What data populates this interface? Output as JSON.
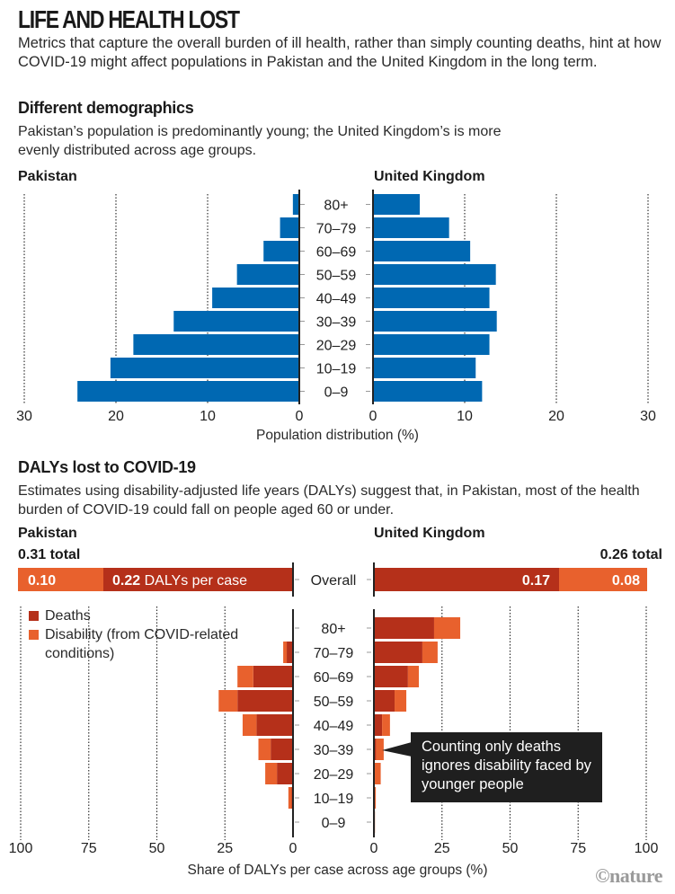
{
  "header": {
    "title": "LIFE AND HEALTH LOST",
    "intro": "Metrics that capture the overall burden of ill health, rather than simply counting deaths, hint at how COVID-19 might affect populations in Pakistan and the United Kingdom in the long term."
  },
  "section1": {
    "heading": "Different demographics",
    "description": "Pakistan’s population is predominantly young; the United Kingdom’s is more evenly distributed across age groups."
  },
  "section2": {
    "heading": "DALYs lost to COVID-19",
    "description": "Estimates using disability-adjusted life years (DALYs) suggest that, in Pakistan, most of the health burden of COVID-19 could fall on people aged 60 or under.",
    "pakistan_total": "0.31 total",
    "uk_total": "0.26 total",
    "overall_label": "Overall",
    "pakistan_overall_disability_label": "0.10",
    "pakistan_overall_deaths_label": "0.22",
    "pakistan_overall_deaths_suffix": " DALYs per case",
    "uk_overall_deaths_label": "0.17",
    "uk_overall_disability_label": "0.08",
    "legend": {
      "deaths": "Deaths",
      "disability": "Disability (from COVID-related conditions)"
    },
    "callout": "Counting only deaths ignores disability faced by younger people"
  },
  "countries": {
    "pakistan": "Pakistan",
    "uk": "United Kingdom"
  },
  "colors": {
    "blue": "#0068b2",
    "deaths": "#b5301a",
    "disability": "#e8612d",
    "grid": "#333333"
  },
  "credit": "©nature",
  "chart_data": [
    {
      "type": "bar",
      "title": "Different demographics",
      "orientation": "horizontal-population-pyramid",
      "categories": [
        "80+",
        "70–79",
        "60–69",
        "50–59",
        "40–49",
        "30–39",
        "20–29",
        "10–19",
        "0–9"
      ],
      "series": [
        {
          "name": "Pakistan",
          "values": [
            0.7,
            2.1,
            3.9,
            6.8,
            9.5,
            13.7,
            18.1,
            20.6,
            24.2
          ]
        },
        {
          "name": "United Kingdom",
          "values": [
            5.1,
            8.3,
            10.6,
            13.4,
            12.7,
            13.5,
            12.7,
            11.2,
            11.9
          ]
        }
      ],
      "xlabel": "Population distribution (%)",
      "ylabel": "",
      "xlim": [
        0,
        30
      ],
      "xticks": [
        "0",
        "10",
        "20",
        "30"
      ],
      "grid": true
    },
    {
      "type": "bar",
      "title": "DALYs lost to COVID-19",
      "orientation": "horizontal-stacked-butterfly",
      "categories": [
        "80+",
        "70–79",
        "60–69",
        "50–59",
        "40–49",
        "30–39",
        "20–29",
        "10–19",
        "0–9"
      ],
      "series": [
        {
          "name": "Pakistan Deaths",
          "values": [
            0,
            2.3,
            14.6,
            20.4,
            13.4,
            8.2,
            5.9,
            0.5,
            0
          ]
        },
        {
          "name": "Pakistan Disability",
          "values": [
            0,
            1.3,
            5.8,
            6.9,
            5.1,
            4.5,
            4.3,
            1.2,
            0
          ]
        },
        {
          "name": "United Kingdom Deaths",
          "values": [
            22.1,
            17.8,
            12.5,
            7.6,
            3.0,
            0.8,
            0.2,
            0.2,
            0.1
          ]
        },
        {
          "name": "United Kingdom Disability",
          "values": [
            9.6,
            5.6,
            4.0,
            4.3,
            2.9,
            2.8,
            2.3,
            0.5,
            0.3
          ]
        }
      ],
      "overall": {
        "Pakistan": {
          "deaths": 0.22,
          "disability": 0.1,
          "total": 0.31
        },
        "United Kingdom": {
          "deaths": 0.17,
          "disability": 0.08,
          "total": 0.26
        }
      },
      "xlabel": "Share of DALYs per case across age groups (%)",
      "xlim": [
        0,
        100
      ],
      "xticks": [
        "0",
        "25",
        "50",
        "75",
        "100"
      ],
      "legend": [
        "Deaths",
        "Disability (from COVID-related conditions)"
      ],
      "legend_position": "top-left",
      "annotation": "Counting only deaths ignores disability faced by younger people",
      "grid": true
    }
  ]
}
